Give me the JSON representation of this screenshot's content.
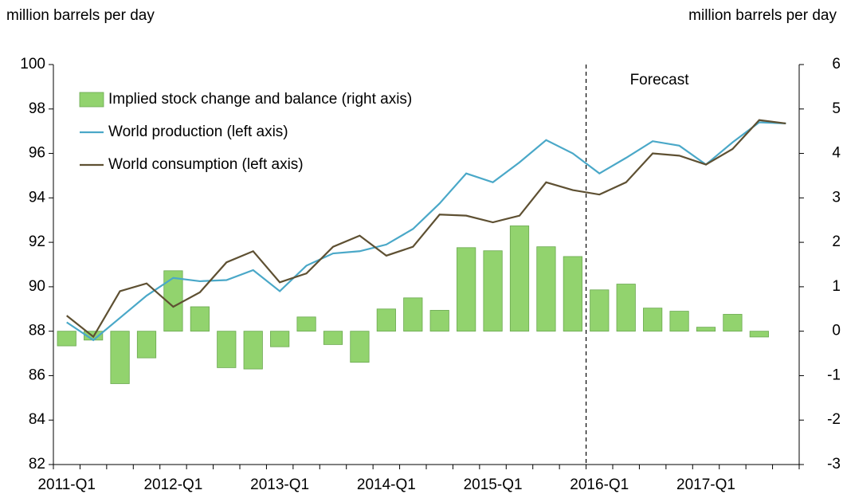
{
  "chart_data": {
    "type": "combo",
    "y_label": "million barrels per day",
    "y2_label": "million barrels per day",
    "categories": [
      "2011-Q1",
      null,
      null,
      null,
      "2012-Q1",
      null,
      null,
      null,
      "2013-Q1",
      null,
      null,
      null,
      "2014-Q1",
      null,
      null,
      null,
      "2015-Q1",
      null,
      null,
      null,
      "2016-Q1",
      null,
      null,
      null,
      "2017-Q1",
      null,
      null,
      null
    ],
    "series": [
      {
        "name": "Implied stock change and balance (right axis)",
        "type": "bar",
        "axis": "y2",
        "color": "#92d36e",
        "values": [
          -0.33,
          -0.2,
          -1.18,
          -0.6,
          1.36,
          0.55,
          -0.82,
          -0.85,
          -0.35,
          0.32,
          -0.3,
          -0.7,
          0.5,
          0.75,
          0.47,
          1.88,
          1.81,
          2.37,
          1.9,
          1.68,
          0.93,
          1.06,
          0.52,
          0.45,
          0.09,
          0.38,
          -0.13,
          0
        ]
      },
      {
        "name": "World production (left axis)",
        "type": "line",
        "color": "#4aa8c8",
        "values": [
          88.4,
          87.6,
          88.6,
          89.6,
          90.4,
          90.25,
          90.3,
          90.75,
          89.8,
          90.95,
          91.5,
          91.6,
          91.9,
          92.6,
          93.75,
          95.1,
          94.7,
          95.6,
          96.6,
          96.0,
          95.1,
          95.8,
          96.55,
          96.35,
          95.5,
          96.5,
          97.4,
          97.35
        ]
      },
      {
        "name": "World consumption (left axis)",
        "type": "line",
        "color": "#5e5032",
        "values": [
          88.7,
          87.75,
          89.8,
          90.15,
          89.1,
          89.75,
          91.1,
          91.6,
          90.2,
          90.6,
          91.8,
          92.3,
          91.4,
          91.8,
          93.25,
          93.2,
          92.9,
          93.2,
          94.7,
          94.35,
          94.15,
          94.7,
          96.0,
          95.9,
          95.5,
          96.2,
          97.5,
          97.35
        ]
      }
    ],
    "ylim": [
      82,
      100
    ],
    "yticks": [
      82,
      84,
      86,
      88,
      90,
      92,
      94,
      96,
      98,
      100
    ],
    "y2lim": [
      -3,
      6
    ],
    "y2ticks": [
      -3,
      -2,
      -1,
      0,
      1,
      2,
      3,
      4,
      5,
      6
    ],
    "annotation": {
      "text": "Forecast",
      "category_index": 20
    },
    "legend": "top-left"
  }
}
